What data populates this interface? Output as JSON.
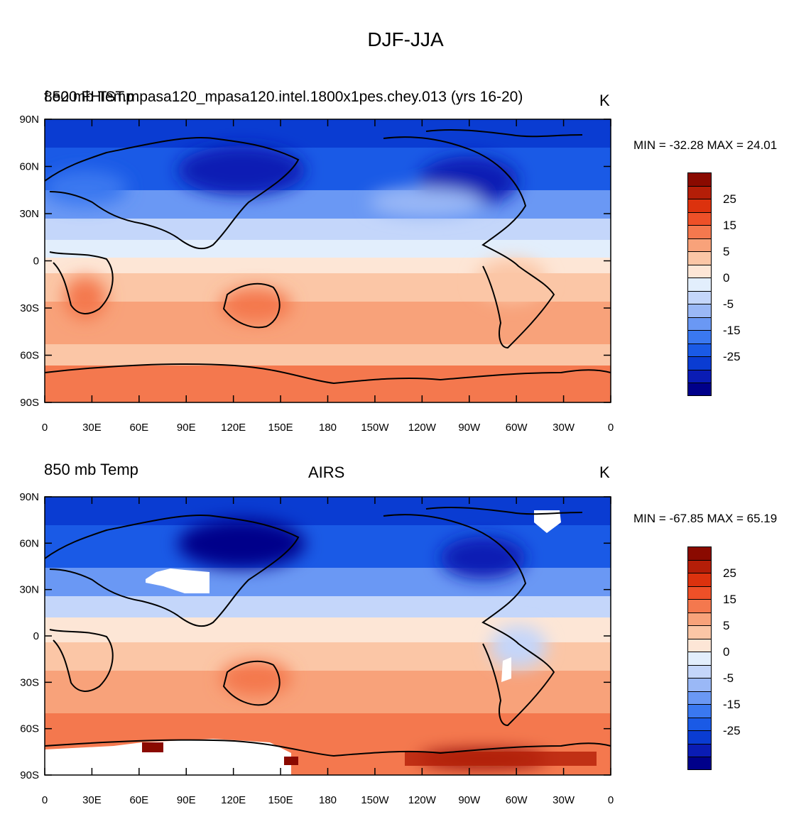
{
  "title": "DJF-JJA",
  "colorbar": {
    "colors": [
      "#00008a",
      "#0a1cb4",
      "#0a3cd2",
      "#1a5ae6",
      "#3a78f0",
      "#6a98f4",
      "#9ab8f6",
      "#c4d6fa",
      "#e2eefc",
      "#fde6d6",
      "#fbc6a6",
      "#f8a27a",
      "#f4784e",
      "#ee5028",
      "#dc320e",
      "#b41e08",
      "#8a0a00"
    ],
    "labels": [
      "25",
      "15",
      "5",
      "0",
      "-5",
      "-15",
      "-25"
    ]
  },
  "axes": {
    "lat_labels": [
      "90N",
      "60N",
      "30N",
      "0",
      "30S",
      "60S",
      "90S"
    ],
    "lon_labels": [
      "0",
      "30E",
      "60E",
      "90E",
      "120E",
      "150E",
      "180",
      "150W",
      "120W",
      "90W",
      "60W",
      "30W",
      "0"
    ]
  },
  "panels": [
    {
      "left_string": "850 mb Temp",
      "center_string": "f.e20.FHIST.mpasa120_mpasa120.intel.1800x1pes.chey.013 (yrs 16-20)",
      "right_string": "K",
      "minmax": "MIN = -32.28 MAX =  24.01"
    },
    {
      "left_string": "850 mb Temp",
      "center_string": "AIRS",
      "right_string": "K",
      "minmax": "MIN = -67.85 MAX =  65.19"
    }
  ]
}
